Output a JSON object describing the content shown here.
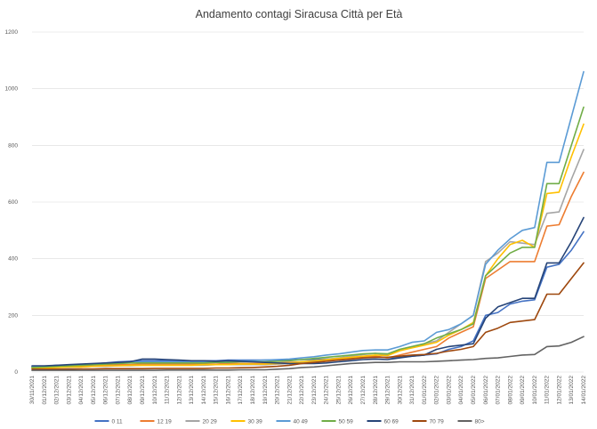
{
  "chart_data": {
    "type": "line",
    "title": "Andamento contagi Siracusa Città per Età",
    "xlabel": "",
    "ylabel": "",
    "ylim": [
      0,
      1200
    ],
    "yticks": [
      0,
      200,
      400,
      600,
      800,
      1000,
      1200
    ],
    "grid": true,
    "legend_position": "bottom",
    "x": [
      "30/11/2021",
      "01/12/2021",
      "02/12/2021",
      "03/12/2021",
      "04/12/2021",
      "05/12/2021",
      "06/12/2021",
      "07/12/2021",
      "08/12/2021",
      "09/12/2021",
      "10/12/2021",
      "11/12/2021",
      "12/12/2021",
      "13/12/2021",
      "14/12/2021",
      "15/12/2021",
      "16/12/2021",
      "17/12/2021",
      "18/12/2021",
      "19/12/2021",
      "20/12/2021",
      "21/12/2021",
      "22/12/2021",
      "23/12/2021",
      "24/12/2021",
      "25/12/2021",
      "26/12/2021",
      "27/12/2021",
      "28/12/2021",
      "29/12/2021",
      "30/12/2021",
      "31/12/2021",
      "01/01/2022",
      "02/01/2022",
      "03/01/2022",
      "04/01/2022",
      "05/01/2022",
      "06/01/2022",
      "07/01/2022",
      "08/01/2022",
      "09/01/2022",
      "10/01/2022",
      "11/01/2022",
      "12/01/2022",
      "13/01/2022",
      "14/01/2022"
    ],
    "series": [
      {
        "name": "0 11",
        "color": "#4472c4",
        "values": [
          20,
          20,
          24,
          24,
          26,
          28,
          32,
          36,
          38,
          40,
          40,
          40,
          40,
          40,
          40,
          40,
          42,
          42,
          42,
          42,
          42,
          42,
          44,
          44,
          46,
          48,
          50,
          52,
          54,
          50,
          52,
          56,
          60,
          64,
          80,
          90,
          110,
          200,
          210,
          240,
          250,
          255,
          370,
          380,
          430,
          495
        ]
      },
      {
        "name": "12 19",
        "color": "#ed7d31",
        "values": [
          15,
          16,
          18,
          20,
          20,
          22,
          24,
          26,
          26,
          28,
          28,
          28,
          28,
          28,
          28,
          28,
          30,
          30,
          30,
          30,
          32,
          34,
          36,
          38,
          42,
          46,
          50,
          54,
          56,
          50,
          60,
          70,
          80,
          90,
          120,
          140,
          160,
          330,
          360,
          390,
          390,
          390,
          515,
          520,
          620,
          705
        ]
      },
      {
        "name": "20 29",
        "color": "#a5a5a5",
        "values": [
          14,
          14,
          16,
          16,
          18,
          20,
          20,
          22,
          22,
          24,
          24,
          24,
          24,
          24,
          24,
          26,
          26,
          26,
          26,
          26,
          28,
          30,
          34,
          38,
          44,
          50,
          56,
          62,
          66,
          60,
          80,
          90,
          100,
          110,
          140,
          170,
          200,
          390,
          420,
          460,
          455,
          450,
          560,
          565,
          680,
          785
        ]
      },
      {
        "name": "30 39",
        "color": "#ffc000",
        "values": [
          14,
          14,
          16,
          18,
          18,
          20,
          22,
          22,
          24,
          24,
          24,
          24,
          24,
          24,
          26,
          26,
          26,
          28,
          28,
          28,
          30,
          32,
          36,
          40,
          44,
          48,
          52,
          56,
          60,
          58,
          75,
          85,
          95,
          105,
          130,
          150,
          175,
          340,
          400,
          450,
          465,
          440,
          630,
          635,
          760,
          875
        ]
      },
      {
        "name": "40 49",
        "color": "#5b9bd5",
        "values": [
          18,
          20,
          22,
          24,
          26,
          28,
          30,
          32,
          34,
          36,
          36,
          36,
          36,
          36,
          36,
          38,
          38,
          40,
          40,
          42,
          44,
          46,
          50,
          54,
          60,
          64,
          70,
          76,
          78,
          78,
          90,
          105,
          110,
          140,
          150,
          170,
          200,
          380,
          430,
          470,
          500,
          510,
          740,
          740,
          900,
          1060
        ]
      },
      {
        "name": "50 59",
        "color": "#70ad47",
        "values": [
          16,
          18,
          20,
          22,
          24,
          26,
          28,
          30,
          32,
          32,
          32,
          32,
          32,
          32,
          32,
          34,
          34,
          36,
          36,
          36,
          38,
          40,
          44,
          48,
          52,
          56,
          60,
          64,
          66,
          64,
          80,
          90,
          100,
          120,
          135,
          150,
          170,
          340,
          380,
          420,
          440,
          440,
          665,
          665,
          800,
          935
        ]
      },
      {
        "name": "60 69",
        "color": "#264478",
        "values": [
          22,
          22,
          24,
          26,
          28,
          30,
          32,
          34,
          36,
          46,
          46,
          44,
          42,
          40,
          40,
          38,
          40,
          38,
          36,
          34,
          32,
          30,
          30,
          30,
          32,
          36,
          40,
          44,
          46,
          44,
          50,
          56,
          60,
          80,
          90,
          95,
          100,
          190,
          230,
          245,
          260,
          260,
          385,
          385,
          460,
          545
        ]
      },
      {
        "name": "70 79",
        "color": "#9e480e",
        "values": [
          10,
          10,
          10,
          10,
          11,
          11,
          12,
          12,
          12,
          12,
          13,
          13,
          13,
          13,
          13,
          14,
          14,
          15,
          16,
          18,
          20,
          24,
          30,
          34,
          38,
          42,
          46,
          50,
          52,
          52,
          56,
          60,
          62,
          66,
          74,
          80,
          90,
          140,
          155,
          175,
          180,
          185,
          275,
          275,
          330,
          385
        ]
      },
      {
        "name": "80>",
        "color": "#636363",
        "values": [
          6,
          6,
          6,
          6,
          6,
          6,
          6,
          6,
          6,
          6,
          6,
          7,
          7,
          7,
          7,
          7,
          7,
          8,
          8,
          8,
          10,
          12,
          16,
          18,
          22,
          26,
          30,
          32,
          34,
          34,
          36,
          36,
          36,
          38,
          40,
          42,
          44,
          48,
          50,
          55,
          60,
          62,
          90,
          92,
          105,
          125
        ]
      }
    ]
  }
}
